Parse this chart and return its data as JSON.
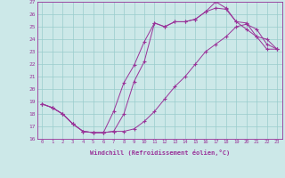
{
  "xlabel": "Windchill (Refroidissement éolien,°C)",
  "background_color": "#cce8e8",
  "grid_color": "#99cccc",
  "line_color": "#993399",
  "xmin": 0,
  "xmax": 23,
  "ymin": 16,
  "ymax": 27,
  "line1_x": [
    0,
    1,
    2,
    3,
    4,
    5,
    6,
    7,
    8,
    9,
    10,
    11,
    12,
    13,
    14,
    15,
    16,
    17,
    18,
    19,
    20,
    21,
    22,
    23
  ],
  "line1_y": [
    18.8,
    18.5,
    18.0,
    17.2,
    16.6,
    16.5,
    16.5,
    16.6,
    18.0,
    20.6,
    22.2,
    25.3,
    25.0,
    25.4,
    25.4,
    25.6,
    26.2,
    27.0,
    26.5,
    25.4,
    25.3,
    24.2,
    24.0,
    23.2
  ],
  "line2_x": [
    0,
    1,
    2,
    3,
    4,
    5,
    6,
    7,
    8,
    9,
    10,
    11,
    12,
    13,
    14,
    15,
    16,
    17,
    18,
    19,
    20,
    21,
    22,
    23
  ],
  "line2_y": [
    18.8,
    18.5,
    18.0,
    17.2,
    16.6,
    16.5,
    16.5,
    18.2,
    20.5,
    21.9,
    23.8,
    25.3,
    25.0,
    25.4,
    25.4,
    25.6,
    26.2,
    26.5,
    26.4,
    25.4,
    24.8,
    24.2,
    23.2,
    23.2
  ],
  "line3_x": [
    0,
    1,
    2,
    3,
    4,
    5,
    6,
    7,
    8,
    9,
    10,
    11,
    12,
    13,
    14,
    15,
    16,
    17,
    18,
    19,
    20,
    21,
    22,
    23
  ],
  "line3_y": [
    18.8,
    18.5,
    18.0,
    17.2,
    16.6,
    16.5,
    16.5,
    16.6,
    16.6,
    16.8,
    17.4,
    18.2,
    19.2,
    20.2,
    21.0,
    22.0,
    23.0,
    23.6,
    24.2,
    25.0,
    25.2,
    24.8,
    23.6,
    23.2
  ]
}
